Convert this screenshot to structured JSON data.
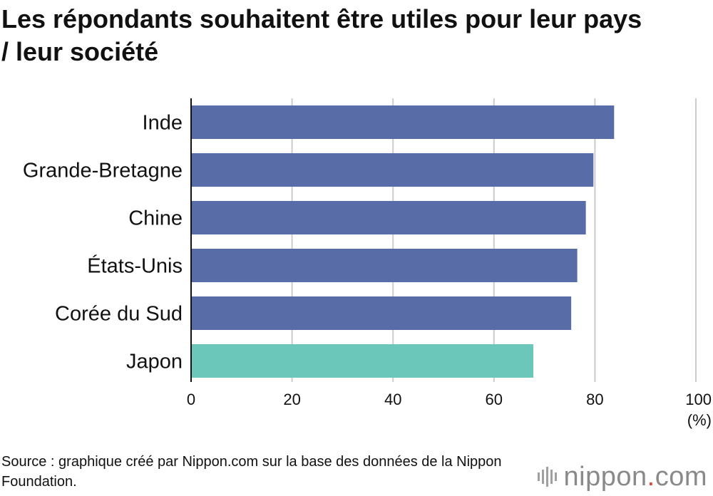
{
  "title": "Les répondants souhaitent être utiles pour leur pays / leur société",
  "source": "Source : graphique créé par Nippon.com sur la base des données de la Nippon Foundation.",
  "logo": {
    "name": "nippon",
    "dot": ".",
    "suffix": "com",
    "icon": "waveform-bars-icon",
    "accent": "#e2403d"
  },
  "chart_data": {
    "type": "bar",
    "orientation": "horizontal",
    "categories": [
      "Inde",
      "Grande-Bretagne",
      "Chine",
      "États-Unis",
      "Corée du Sud",
      "Japon"
    ],
    "values": [
      83.8,
      79.7,
      78.2,
      76.5,
      75.3,
      67.8
    ],
    "colors": [
      "#586ca8",
      "#586ca8",
      "#586ca8",
      "#586ca8",
      "#586ca8",
      "#6ac7ba"
    ],
    "xlim": [
      0,
      100
    ],
    "xticks": [
      0,
      20,
      40,
      60,
      80,
      100
    ],
    "xunit": "(%)",
    "grid": true
  }
}
